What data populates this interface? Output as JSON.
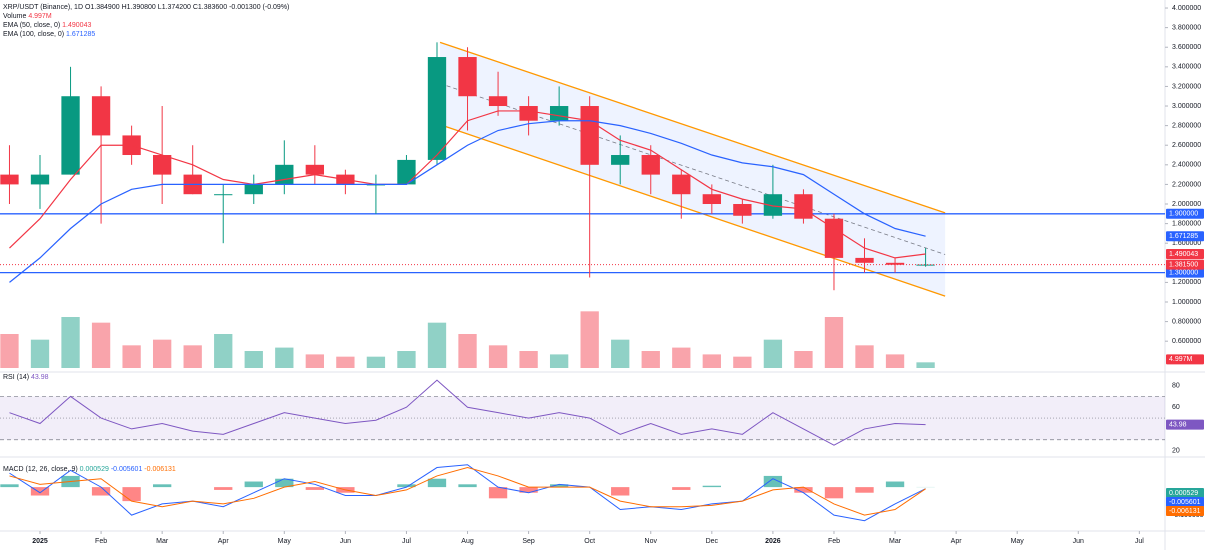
{
  "chart_data": [
    {
      "type": "candlestick",
      "title": "XRP/USDT (Binance), 1D",
      "header_values": [
        "O1.384900",
        "H1.390800",
        "L1.374200",
        "C1.383600",
        "-0.001300 (-0.09%)"
      ],
      "x": [
        -0.5,
        0,
        0.5,
        1,
        1.5,
        2,
        2.5,
        3,
        3.5,
        4,
        4.5,
        5,
        5.5,
        6,
        6.5,
        7,
        7.5,
        8,
        8.5,
        9,
        9.5,
        10,
        10.5,
        11,
        11.5,
        12,
        12.5,
        13,
        13.5,
        14,
        14.5
      ],
      "open": [
        2.3,
        2.2,
        2.3,
        3.1,
        2.7,
        2.5,
        2.3,
        2.1,
        2.1,
        2.2,
        2.4,
        2.3,
        2.2,
        2.2,
        2.45,
        3.5,
        3.1,
        3.0,
        2.85,
        3.0,
        2.4,
        2.5,
        2.3,
        2.1,
        2.0,
        1.88,
        2.1,
        1.85,
        1.45,
        1.4,
        1.38
      ],
      "high": [
        2.6,
        2.5,
        3.4,
        3.2,
        2.8,
        3.0,
        2.6,
        2.2,
        2.3,
        2.65,
        2.6,
        2.35,
        2.3,
        2.5,
        3.65,
        3.6,
        3.35,
        3.1,
        3.2,
        3.1,
        2.7,
        2.6,
        2.35,
        2.2,
        2.05,
        2.4,
        2.15,
        1.9,
        1.65,
        1.45,
        1.55
      ],
      "low": [
        2.0,
        1.95,
        2.3,
        1.8,
        2.4,
        2.0,
        2.1,
        1.6,
        2.0,
        2.1,
        2.2,
        2.1,
        1.9,
        2.2,
        2.4,
        2.75,
        2.9,
        2.7,
        2.8,
        1.25,
        2.2,
        2.1,
        1.85,
        1.9,
        1.8,
        1.85,
        1.8,
        1.12,
        1.3,
        1.3,
        1.36
      ],
      "close": [
        2.2,
        2.3,
        3.1,
        2.7,
        2.5,
        2.3,
        2.1,
        2.1,
        2.2,
        2.4,
        2.3,
        2.2,
        2.2,
        2.45,
        3.5,
        3.1,
        3.0,
        2.85,
        3.0,
        2.4,
        2.5,
        2.3,
        2.1,
        2.0,
        1.88,
        2.1,
        1.85,
        1.45,
        1.4,
        1.38,
        1.3815
      ],
      "last_price_label": "1.381500",
      "up_color": "#089981",
      "down_color": "#f23645",
      "series": [
        {
          "name": "EMA (50, close, 0)",
          "color": "#f23645",
          "values": [
            1.55,
            1.85,
            2.25,
            2.6,
            2.6,
            2.5,
            2.4,
            2.25,
            2.2,
            2.25,
            2.3,
            2.25,
            2.2,
            2.2,
            2.5,
            2.85,
            2.95,
            2.95,
            2.9,
            2.85,
            2.65,
            2.55,
            2.35,
            2.15,
            2.05,
            1.98,
            1.95,
            1.75,
            1.55,
            1.45,
            1.490043
          ]
        },
        {
          "name": "EMA (100, close, 0)",
          "color": "#2962ff",
          "values": [
            1.2,
            1.45,
            1.75,
            2.0,
            2.15,
            2.2,
            2.2,
            2.2,
            2.2,
            2.2,
            2.2,
            2.2,
            2.2,
            2.2,
            2.4,
            2.6,
            2.75,
            2.82,
            2.85,
            2.85,
            2.8,
            2.72,
            2.62,
            2.5,
            2.42,
            2.38,
            2.3,
            2.1,
            1.9,
            1.75,
            1.671285
          ]
        }
      ],
      "volume": {
        "name": "Volume",
        "values": [
          30,
          25,
          45,
          40,
          20,
          25,
          20,
          30,
          15,
          18,
          12,
          10,
          10,
          15,
          40,
          30,
          20,
          15,
          12,
          50,
          25,
          15,
          18,
          12,
          10,
          25,
          15,
          45,
          20,
          12,
          4.997
        ],
        "ylim": [
          0,
          60
        ],
        "last_value_label": "4.997M"
      },
      "levels": [
        {
          "value": 1.9,
          "label": "1.900000",
          "color": "#2962ff"
        },
        {
          "value": 1.3,
          "label": "1.300000",
          "color": "#2962ff"
        }
      ],
      "channel": {
        "upper": [
          [
            6.55,
            3.65
          ],
          [
            14.82,
            1.91
          ]
        ],
        "lower": [
          [
            6.55,
            2.81
          ],
          [
            14.82,
            1.06
          ]
        ],
        "color": "#ff9800"
      },
      "xlim": [
        -0.655,
        18.42
      ],
      "xticks": [
        {
          "value": 0,
          "label": "2025"
        },
        {
          "value": 1,
          "label": "Feb"
        },
        {
          "value": 2,
          "label": "Mar"
        },
        {
          "value": 3,
          "label": "Apr"
        },
        {
          "value": 4,
          "label": "May"
        },
        {
          "value": 5,
          "label": "Jun"
        },
        {
          "value": 6,
          "label": "Jul"
        },
        {
          "value": 7,
          "label": "Aug"
        },
        {
          "value": 8,
          "label": "Sep"
        },
        {
          "value": 9,
          "label": "Oct"
        },
        {
          "value": 10,
          "label": "Nov"
        },
        {
          "value": 11,
          "label": "Dec"
        },
        {
          "value": 12,
          "label": "2026"
        },
        {
          "value": 13,
          "label": "Feb"
        },
        {
          "value": 14,
          "label": "Mar"
        },
        {
          "value": 15,
          "label": "Apr"
        },
        {
          "value": 16,
          "label": "May"
        },
        {
          "value": 17,
          "label": "Jun"
        },
        {
          "value": 18,
          "label": "Jul"
        }
      ],
      "ylim": [
        0.306,
        4.082
      ],
      "yticks": [
        {
          "value": 4.0,
          "label": "4.000000"
        },
        {
          "value": 3.8,
          "label": "3.800000"
        },
        {
          "value": 3.6,
          "label": "3.600000"
        },
        {
          "value": 3.4,
          "label": "3.400000"
        },
        {
          "value": 3.2,
          "label": "3.200000"
        },
        {
          "value": 3.0,
          "label": "3.000000"
        },
        {
          "value": 2.8,
          "label": "2.800000"
        },
        {
          "value": 2.6,
          "label": "2.600000"
        },
        {
          "value": 2.4,
          "label": "2.400000"
        },
        {
          "value": 2.2,
          "label": "2.200000"
        },
        {
          "value": 2.0,
          "label": "2.000000"
        },
        {
          "value": 1.8,
          "label": "1.800000"
        },
        {
          "value": 1.6,
          "label": "1.600000"
        },
        {
          "value": 1.2,
          "label": "1.200000"
        },
        {
          "value": 1.0,
          "label": "1.000000"
        },
        {
          "value": 0.8,
          "label": "0.800000"
        },
        {
          "value": 0.6,
          "label": "0.600000"
        }
      ]
    },
    {
      "type": "line",
      "title": "RSI (14)",
      "color": "#7e57c2",
      "values": [
        55,
        45,
        70,
        50,
        40,
        45,
        38,
        35,
        45,
        55,
        50,
        45,
        48,
        60,
        85,
        60,
        55,
        50,
        55,
        50,
        35,
        45,
        35,
        40,
        35,
        55,
        40,
        25,
        40,
        45,
        43.98
      ],
      "ylim": [
        15,
        87
      ],
      "yticks": [
        20,
        60,
        80
      ],
      "band": [
        30,
        70
      ],
      "midline": 50
    },
    {
      "type": "macd",
      "title": "MACD (12, 26, close, 9)",
      "series": [
        {
          "color": "#26a69a",
          "values": [
            0.01,
            -0.03,
            0.04,
            -0.03,
            -0.05,
            0.01,
            0.0,
            -0.01,
            0.02,
            0.03,
            -0.01,
            -0.02,
            0.0,
            0.01,
            0.03,
            0.01,
            -0.04,
            -0.02,
            0.01,
            0.0,
            -0.03,
            0.0,
            -0.01,
            0.005,
            0.0,
            0.04,
            -0.02,
            -0.04,
            -0.02,
            0.02,
            0.000529
          ]
        },
        {
          "color": "#2962ff",
          "values": [
            0.05,
            -0.02,
            0.06,
            0.0,
            -0.1,
            -0.06,
            -0.05,
            -0.07,
            -0.02,
            0.03,
            0.01,
            -0.03,
            -0.03,
            0.0,
            0.07,
            0.08,
            0.0,
            -0.02,
            0.01,
            0.0,
            -0.08,
            -0.07,
            -0.08,
            -0.06,
            -0.05,
            0.03,
            -0.02,
            -0.1,
            -0.12,
            -0.06,
            -0.005601
          ]
        },
        {
          "color": "#ff6d00",
          "values": [
            0.04,
            0.01,
            0.02,
            0.03,
            -0.05,
            -0.07,
            -0.05,
            -0.06,
            -0.04,
            0.0,
            0.02,
            -0.01,
            -0.03,
            -0.01,
            0.04,
            0.07,
            0.04,
            0.0,
            0.0,
            0.0,
            -0.05,
            -0.07,
            -0.07,
            -0.065,
            -0.05,
            -0.01,
            0.0,
            -0.06,
            -0.1,
            -0.08,
            -0.006131
          ]
        }
      ],
      "down_color": "#ff5252",
      "ylim": [
        -0.146,
        0.104
      ],
      "yticks": [
        {
          "value": -0.1,
          "label": "-0.100000"
        }
      ]
    }
  ]
}
